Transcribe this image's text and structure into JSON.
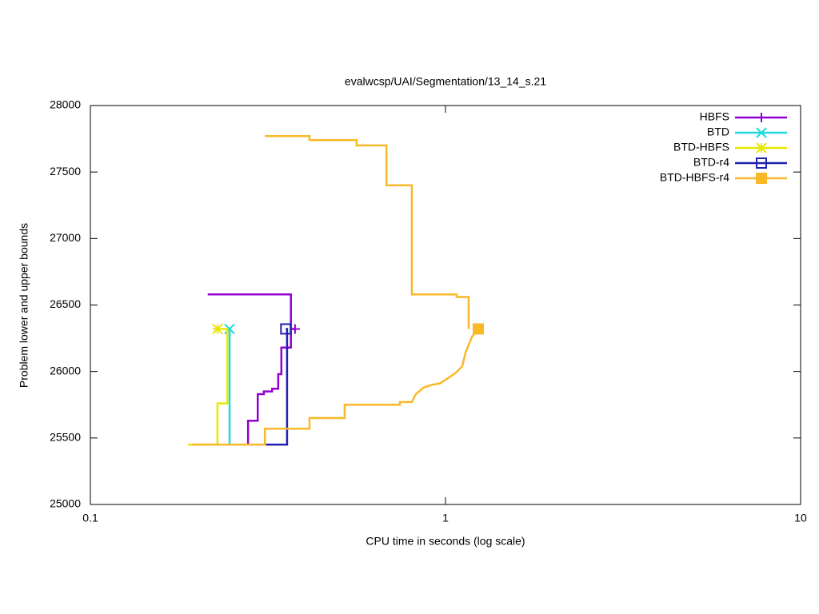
{
  "chart_data": {
    "type": "line",
    "title": "evalwcsp/UAI/Segmentation/13_14_s.21",
    "x_label": "CPU time in seconds (log scale)",
    "y_label": "Problem lower and upper bounds",
    "log_x": true,
    "xlim": [
      0.1,
      10
    ],
    "xticks": [
      0.1,
      1,
      10
    ],
    "ylim": [
      25000,
      28000
    ],
    "yticks": [
      25000,
      25500,
      26000,
      26500,
      27000,
      27500,
      28000
    ],
    "legend": "top right",
    "series": [
      {
        "name": "HBFS",
        "color": "#9400d3",
        "point": "plus",
        "x": [
          0.214,
          0.367,
          0.367,
          null,
          0.278,
          0.278,
          0.296,
          0.296,
          0.308,
          0.308,
          0.325,
          0.325,
          0.338,
          0.338,
          0.345,
          0.345,
          0.367,
          0.367,
          0.377
        ],
        "values": [
          26580,
          26580,
          26180,
          null,
          25450,
          25630,
          25630,
          25830,
          25830,
          25850,
          25850,
          25870,
          25870,
          25980,
          25980,
          26180,
          26180,
          26320,
          26320
        ]
      },
      {
        "name": "BTD",
        "color": "#20d8e0",
        "point": "cross",
        "x": [
          0.2466,
          0.2466
        ],
        "values": [
          25450,
          26320
        ]
      },
      {
        "name": "BTD-HBFS",
        "color": "#e8e800",
        "point": "star",
        "x": [
          0.1884,
          0.228,
          0.228,
          0.243,
          0.243,
          0.228
        ],
        "values": [
          25450,
          25450,
          25760,
          25760,
          26320,
          26320
        ]
      },
      {
        "name": "BTD-r4",
        "color": "#2020b0",
        "point": "open-square",
        "x": [
          0.312,
          0.358,
          0.358,
          0.355
        ],
        "values": [
          25450,
          25450,
          26320,
          26320
        ]
      },
      {
        "name": "BTD-HBFS-r4",
        "color": "#f8b828",
        "point": "filled-square",
        "x": [
          0.31,
          0.414,
          0.414,
          0.562,
          0.562,
          0.682,
          0.682,
          0.804,
          0.804,
          1.075,
          1.075,
          1.162,
          1.162,
          null,
          0.193,
          0.31,
          0.31,
          0.414,
          0.414,
          0.52,
          0.52,
          0.744,
          0.744,
          0.804,
          0.825,
          0.869,
          0.916,
          0.964,
          1.016,
          1.07,
          1.115,
          1.138,
          1.187,
          1.237
        ],
        "values": [
          27770,
          27770,
          27740,
          27740,
          27700,
          27700,
          27400,
          27400,
          26580,
          26580,
          26560,
          26560,
          26320,
          null,
          25450,
          25450,
          25570,
          25570,
          25650,
          25650,
          25750,
          25750,
          25770,
          25770,
          25830,
          25880,
          25900,
          25910,
          25950,
          25990,
          26040,
          26140,
          26260,
          26320
        ]
      }
    ]
  }
}
